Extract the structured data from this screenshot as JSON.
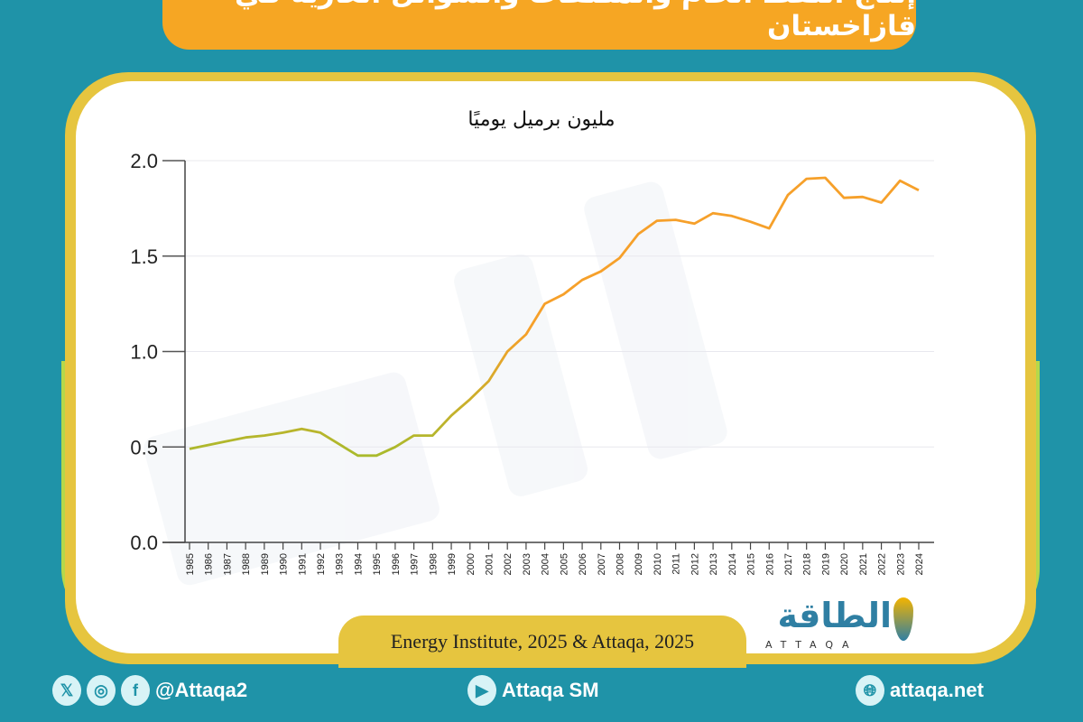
{
  "header": {
    "title": "إنتاج النفط الخام والمكثفات والسوائل الغازية في قازاخستان"
  },
  "chart_data": {
    "type": "line",
    "title": "إنتاج النفط الخام والمكثفات والسوائل الغازية في قازاخستان",
    "ylabel": "مليون برميل يوميًا",
    "xlabel": "",
    "ylim": [
      0,
      2.0
    ],
    "yticks": [
      "0.0",
      "0.5",
      "1.0",
      "1.5",
      "2.0"
    ],
    "grid": true,
    "x": [
      "1985",
      "1986",
      "1987",
      "1988",
      "1989",
      "1990",
      "1991",
      "1992",
      "1993",
      "1994",
      "1995",
      "1996",
      "1997",
      "1998",
      "1999",
      "2000",
      "2001",
      "2002",
      "2003",
      "2004",
      "2005",
      "2006",
      "2007",
      "2008",
      "2009",
      "2010",
      "2011",
      "2012",
      "2013",
      "2014",
      "2015",
      "2016",
      "2017",
      "2018",
      "2019",
      "2020",
      "2021",
      "2022",
      "2023",
      "2024"
    ],
    "values": [
      0.49,
      0.51,
      0.53,
      0.55,
      0.56,
      0.575,
      0.595,
      0.575,
      0.515,
      0.455,
      0.455,
      0.5,
      0.56,
      0.56,
      0.665,
      0.75,
      0.845,
      1.0,
      1.09,
      1.25,
      1.3,
      1.375,
      1.42,
      1.49,
      1.615,
      1.685,
      1.69,
      1.67,
      1.725,
      1.71,
      1.68,
      1.645,
      1.82,
      1.905,
      1.91,
      1.805,
      1.81,
      1.78,
      1.895,
      1.845
    ],
    "line_colors": {
      "low": "#a9ba2c",
      "high": "#f6a02a"
    }
  },
  "source": "Energy Institute, 2025 & Attaqa, 2025",
  "logo": {
    "arabic": "الطاقة",
    "latin": "ATTAQA"
  },
  "footer": {
    "social_handle": "@Attaqa2",
    "youtube": "Attaqa SM",
    "website": "attaqa.net"
  },
  "colors": {
    "background": "#1f93a8",
    "banner": "#f6a623",
    "frame": "#e6c53f"
  }
}
